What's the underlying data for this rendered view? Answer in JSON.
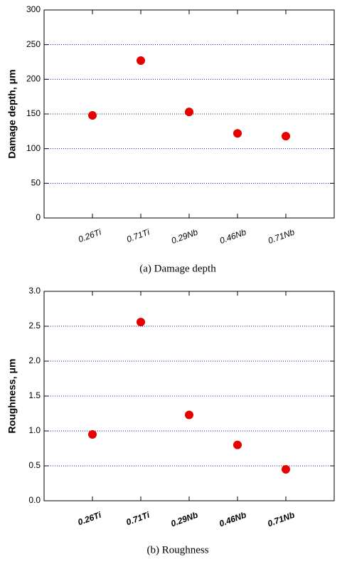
{
  "chart_data": [
    {
      "type": "scatter",
      "caption": "(a)  Damage depth",
      "ylabel": "Damage depth, μm",
      "categories": [
        "0.26Ti",
        "0.71Ti",
        "0.29Nb",
        "0.46Nb",
        "0.71Nb"
      ],
      "values": [
        148,
        227,
        153,
        122,
        118
      ],
      "color": "#e60000",
      "ylim": [
        0,
        300
      ],
      "yticks": [
        0,
        50,
        100,
        150,
        200,
        250,
        300
      ],
      "grid": true
    },
    {
      "type": "scatter",
      "caption": "(b)  Roughness",
      "ylabel": "Roughness, μm",
      "categories": [
        "0.26Ti",
        "0.71Ti",
        "0.29Nb",
        "0.46Nb",
        "0.71Nb"
      ],
      "values": [
        0.95,
        2.56,
        1.23,
        0.8,
        0.45
      ],
      "color": "#e60000",
      "ylim": [
        0,
        3
      ],
      "yticks": [
        {
          "value": 0,
          "label": "0.0"
        },
        0.5,
        {
          "value": 1,
          "label": "1.0"
        },
        1.5,
        {
          "value": 2,
          "label": "2.0"
        },
        2.5,
        {
          "value": 3,
          "label": "3.0"
        }
      ],
      "grid": true
    }
  ]
}
